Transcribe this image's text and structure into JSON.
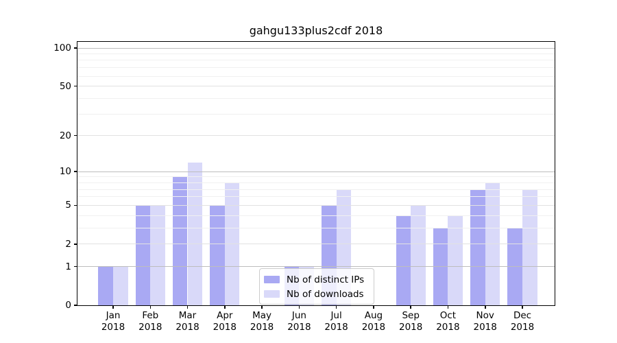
{
  "title": "gahgu133plus2cdf 2018",
  "colors": {
    "bar_distinct_ips": "#a9a9f3",
    "bar_downloads": "#d9d9f9",
    "grid_decade": "#bdbdbd",
    "grid_labeled": "#e2e2e2",
    "grid_minor": "#f0f0f0",
    "spine": "#000000",
    "background": "#ffffff"
  },
  "chart_data": {
    "type": "bar",
    "title": "gahgu133plus2cdf 2018",
    "categories": [
      "Jan 2018",
      "Feb 2018",
      "Mar 2018",
      "Apr 2018",
      "May 2018",
      "Jun 2018",
      "Jul 2018",
      "Aug 2018",
      "Sep 2018",
      "Oct 2018",
      "Nov 2018",
      "Dec 2018"
    ],
    "series": [
      {
        "name": "Nb of distinct IPs",
        "color": "#a9a9f3",
        "values": [
          1,
          5,
          9,
          5,
          0,
          1,
          5,
          0,
          4,
          3,
          7,
          3
        ]
      },
      {
        "name": "Nb of downloads",
        "color": "#d9d9f9",
        "values": [
          1,
          5,
          12,
          8,
          0,
          1,
          7,
          0,
          5,
          4,
          8,
          7
        ]
      }
    ],
    "xlabel": "",
    "ylabel": "",
    "y_axis": {
      "scale": "log10(1+v)",
      "ticks": [
        0,
        1,
        2,
        5,
        10,
        20,
        50,
        100
      ],
      "minor_gridlines": [
        3,
        4,
        6,
        7,
        8,
        9,
        30,
        40,
        60,
        70,
        80,
        90
      ],
      "decade_gridlines": [
        1,
        10,
        100
      ],
      "ylim": [
        0,
        100
      ]
    },
    "grid": "horizontal",
    "legend": {
      "position": "lower center",
      "entries": [
        "Nb of distinct IPs",
        "Nb of downloads"
      ]
    }
  }
}
